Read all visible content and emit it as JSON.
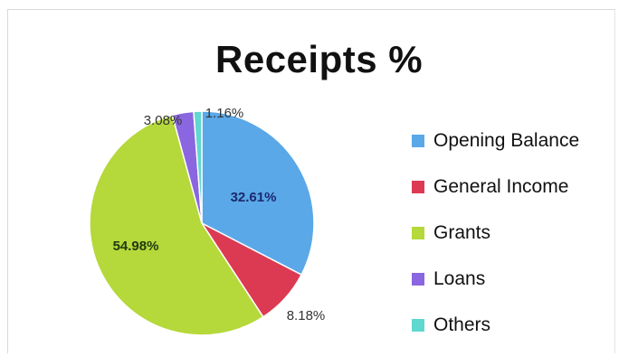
{
  "chart_data": {
    "type": "pie",
    "title": "Receipts %",
    "legend_position": "right",
    "slices": [
      {
        "name": "Opening Balance",
        "value": 32.61,
        "label": "32.61%",
        "color": "#5aa8e8"
      },
      {
        "name": "General Income",
        "value": 8.18,
        "label": "8.18%",
        "color": "#dc3a52"
      },
      {
        "name": "Grants",
        "value": 54.98,
        "label": "54.98%",
        "color": "#b5d83a"
      },
      {
        "name": "Loans",
        "value": 3.08,
        "label": "3.08%",
        "color": "#8a66e0"
      },
      {
        "name": "Others",
        "value": 1.16,
        "label": "1.16%",
        "color": "#5fd8d0"
      }
    ]
  }
}
